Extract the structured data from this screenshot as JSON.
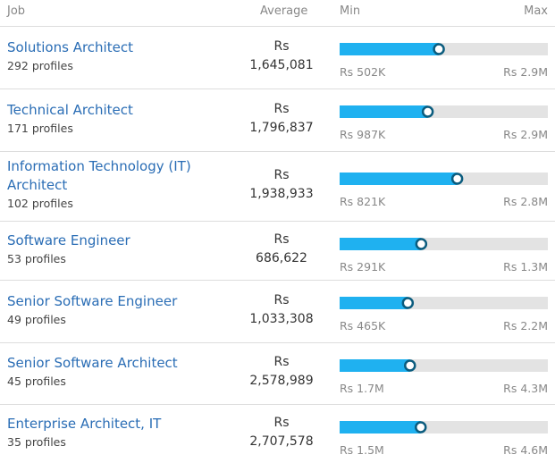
{
  "table": {
    "header": {
      "job": "Job",
      "average": "Average",
      "min": "Min",
      "max": "Max"
    },
    "rows": [
      {
        "title": "Solutions Architect",
        "profiles": "292 profiles",
        "currency": "Rs",
        "average": {
          "value": 1645081,
          "label": "1,645,081"
        },
        "min": {
          "value": 502000,
          "label": "Rs 502K"
        },
        "max": {
          "value": 2900000,
          "label": "Rs 2.9M"
        }
      },
      {
        "title": "Technical Architect",
        "profiles": "171 profiles",
        "currency": "Rs",
        "average": {
          "value": 1796837,
          "label": "1,796,837"
        },
        "min": {
          "value": 987000,
          "label": "Rs 987K"
        },
        "max": {
          "value": 2900000,
          "label": "Rs 2.9M"
        }
      },
      {
        "title": "Information Technology (IT) Architect",
        "profiles": "102 profiles",
        "currency": "Rs",
        "average": {
          "value": 1938933,
          "label": "1,938,933"
        },
        "min": {
          "value": 821000,
          "label": "Rs 821K"
        },
        "max": {
          "value": 2800000,
          "label": "Rs 2.8M"
        }
      },
      {
        "title": "Software Engineer",
        "profiles": "53 profiles",
        "currency": "Rs",
        "average": {
          "value": 686622,
          "label": "686,622"
        },
        "min": {
          "value": 291000,
          "label": "Rs 291K"
        },
        "max": {
          "value": 1300000,
          "label": "Rs 1.3M"
        }
      },
      {
        "title": "Senior Software Engineer",
        "profiles": "49 profiles",
        "currency": "Rs",
        "average": {
          "value": 1033308,
          "label": "1,033,308"
        },
        "min": {
          "value": 465000,
          "label": "Rs 465K"
        },
        "max": {
          "value": 2200000,
          "label": "Rs 2.2M"
        }
      },
      {
        "title": "Senior Software Architect",
        "profiles": "45 profiles",
        "currency": "Rs",
        "average": {
          "value": 2578989,
          "label": "2,578,989"
        },
        "min": {
          "value": 1700000,
          "label": "Rs 1.7M"
        },
        "max": {
          "value": 4300000,
          "label": "Rs 4.3M"
        }
      },
      {
        "title": "Enterprise Architect, IT",
        "profiles": "35 profiles",
        "currency": "Rs",
        "average": {
          "value": 2707578,
          "label": "2,707,578"
        },
        "min": {
          "value": 1500000,
          "label": "Rs 1.5M"
        },
        "max": {
          "value": 4600000,
          "label": "Rs 4.6M"
        }
      }
    ]
  }
}
